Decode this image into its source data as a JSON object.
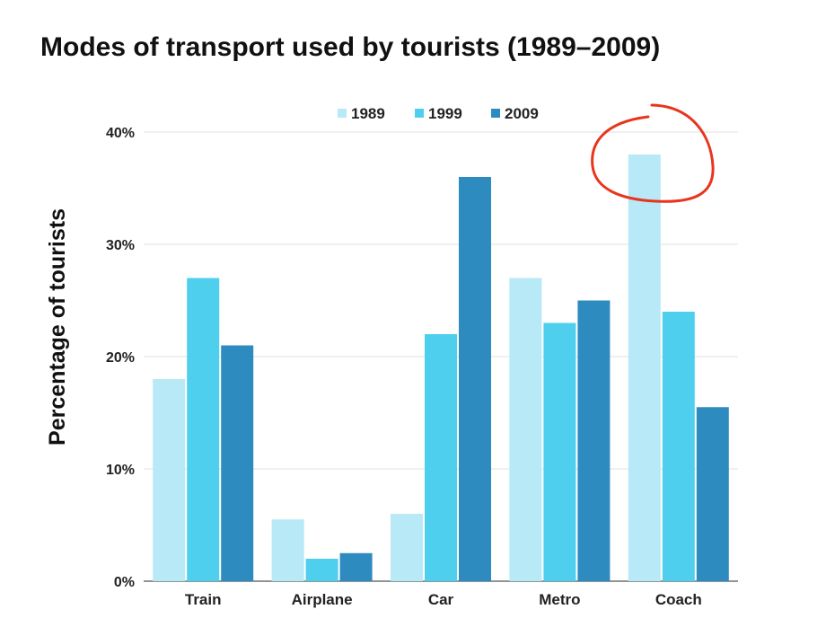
{
  "chart_data": {
    "type": "bar",
    "title": "Modes of transport used by tourists (1989–2009)",
    "xlabel": "",
    "ylabel": "Percentage of tourists",
    "ylim": [
      0,
      40
    ],
    "yticks": [
      0,
      10,
      20,
      30,
      40
    ],
    "ytick_labels": [
      "0%",
      "10%",
      "20%",
      "30%",
      "40%"
    ],
    "grid": true,
    "legend_position": "top-center",
    "categories": [
      "Train",
      "Airplane",
      "Car",
      "Metro",
      "Coach"
    ],
    "series": [
      {
        "name": "1989",
        "color": "#b8e9f6",
        "values": [
          18,
          5.5,
          6,
          27,
          38
        ]
      },
      {
        "name": "1999",
        "color": "#4fcfee",
        "values": [
          27,
          2,
          22,
          23,
          24
        ]
      },
      {
        "name": "2009",
        "color": "#2e8bbf",
        "values": [
          21,
          2.5,
          36,
          25,
          15.5
        ]
      }
    ],
    "annotation": {
      "type": "hand-drawn circle",
      "target": "Coach 1989 bar",
      "color": "#e8351c"
    }
  }
}
